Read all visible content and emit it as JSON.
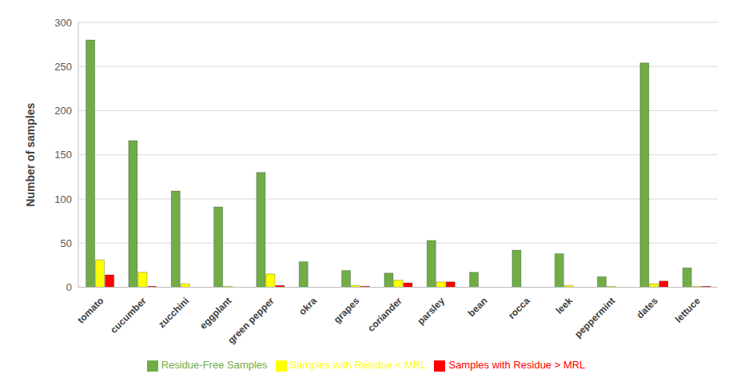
{
  "chart_data": {
    "type": "bar",
    "categories": [
      "tomato",
      "cucumber",
      "zucchini",
      "eggplant",
      "green pepper",
      "okra",
      "grapes",
      "coriander",
      "parsley",
      "bean",
      "rocca",
      "leek",
      "peppermint",
      "dates",
      "lettuce"
    ],
    "y_label": "Number of samples",
    "ylim": [
      0,
      300
    ],
    "yticks": [
      0,
      50,
      100,
      150,
      200,
      250,
      300
    ],
    "grid": true,
    "legend": "bottom",
    "series": [
      {
        "name": "Residue-Free Samples",
        "color": "#70ad47",
        "values": [
          280,
          166,
          109,
          91,
          130,
          29,
          19,
          16,
          53,
          17,
          42,
          38,
          12,
          254,
          22
        ]
      },
      {
        "name": "Samples with Residue < MRL",
        "color": "#ffff00",
        "values": [
          31,
          17,
          4,
          1,
          15,
          0,
          2,
          8,
          6,
          0,
          0,
          2,
          1,
          4,
          1
        ]
      },
      {
        "name": "Samples with Residue > MRL",
        "color": "#ff0000",
        "values": [
          14,
          1,
          0,
          0,
          2,
          0,
          1,
          5,
          6,
          0,
          0,
          0,
          0,
          7,
          1
        ]
      }
    ]
  }
}
